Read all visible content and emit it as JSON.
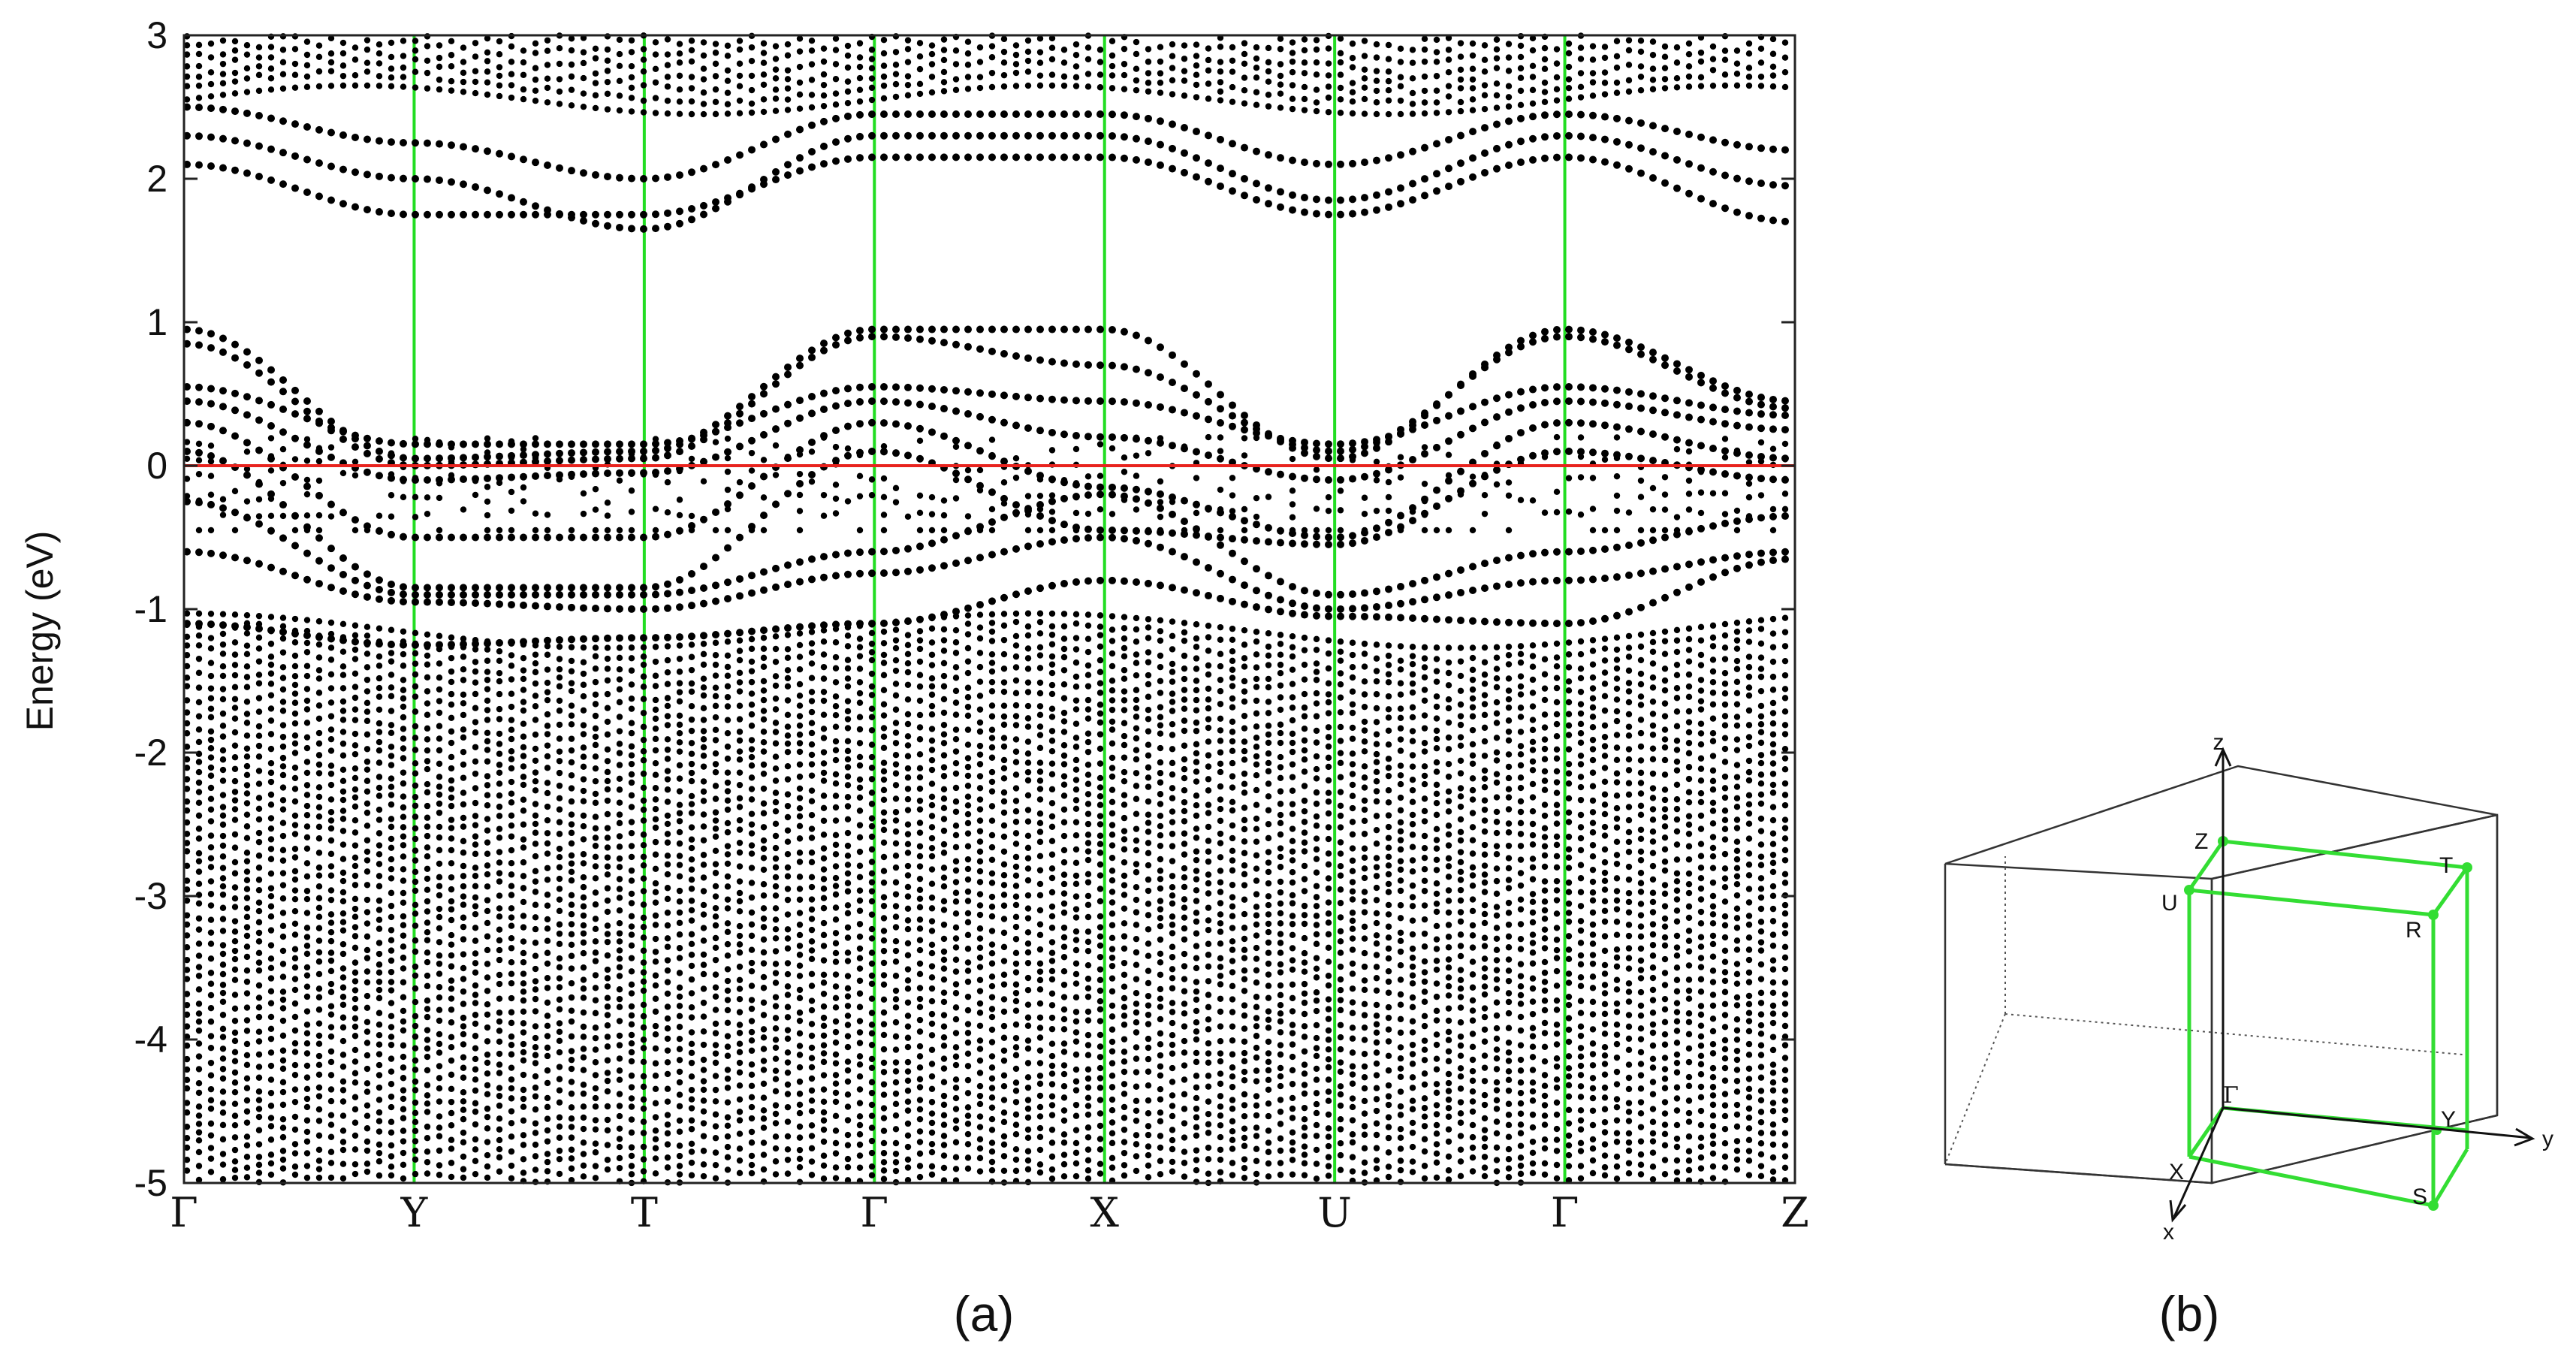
{
  "panel_a_caption": "(a)",
  "panel_b_caption": "(b)",
  "chart_data": [
    {
      "type": "scatter",
      "description_kind": "band structure",
      "title": "",
      "ylabel": "Energy (eV)",
      "xlabel": "",
      "ylim": [
        -5,
        3
      ],
      "yticks": [
        3,
        2,
        1,
        0,
        -1,
        -2,
        -3,
        -4,
        -5
      ],
      "ytick_labels": [
        "3",
        "2",
        "1",
        "0",
        "-1",
        "-2",
        "-3",
        "-4",
        "-5"
      ],
      "kpath_labels": [
        "Γ",
        "Y",
        "T",
        "Γ",
        "X",
        "U",
        "Γ",
        "Z"
      ],
      "fermi_level": 0,
      "fermi_line_color": "#e8231e",
      "kpoint_line_color": "#22dd22",
      "marker_color": "#000000",
      "grid": false,
      "band_gap_region": [
        1.0,
        1.65
      ],
      "series": [
        {
          "path": [
            [
              0,
              0.95
            ],
            [
              1,
              0.05
            ],
            [
              2,
              0.1
            ],
            [
              3,
              0.95
            ],
            [
              4,
              0.95
            ],
            [
              5,
              0.05
            ],
            [
              6,
              0.95
            ],
            [
              7,
              0.45
            ]
          ]
        },
        {
          "path": [
            [
              0,
              0.85
            ],
            [
              1,
              0.0
            ],
            [
              2,
              0.05
            ],
            [
              3,
              0.9
            ],
            [
              4,
              0.7
            ],
            [
              5,
              0.1
            ],
            [
              6,
              0.9
            ],
            [
              7,
              0.4
            ]
          ]
        },
        {
          "path": [
            [
              0,
              0.55
            ],
            [
              1,
              0.15
            ],
            [
              2,
              0.15
            ],
            [
              3,
              0.55
            ],
            [
              4,
              0.45
            ],
            [
              5,
              0.15
            ],
            [
              6,
              0.55
            ],
            [
              7,
              0.35
            ]
          ]
        },
        {
          "path": [
            [
              0,
              0.45
            ],
            [
              1,
              -0.1
            ],
            [
              2,
              -0.05
            ],
            [
              3,
              0.45
            ],
            [
              4,
              0.2
            ],
            [
              5,
              -0.1
            ],
            [
              6,
              0.45
            ],
            [
              7,
              0.25
            ]
          ]
        },
        {
          "path": [
            [
              0,
              0.3
            ],
            [
              1,
              -0.5
            ],
            [
              2,
              -0.5
            ],
            [
              3,
              0.3
            ],
            [
              4,
              -0.15
            ],
            [
              5,
              -0.5
            ],
            [
              6,
              0.3
            ],
            [
              7,
              0.05
            ]
          ]
        },
        {
          "path": [
            [
              0,
              0.1
            ],
            [
              1,
              -0.85
            ],
            [
              2,
              -0.85
            ],
            [
              3,
              0.1
            ],
            [
              4,
              -0.45
            ],
            [
              5,
              -0.55
            ],
            [
              6,
              0.1
            ],
            [
              7,
              -0.1
            ]
          ]
        },
        {
          "path": [
            [
              0,
              -0.25
            ],
            [
              1,
              -0.9
            ],
            [
              2,
              -0.9
            ],
            [
              3,
              -0.6
            ],
            [
              4,
              -0.2
            ],
            [
              5,
              -0.9
            ],
            [
              6,
              -0.6
            ],
            [
              7,
              -0.35
            ]
          ]
        },
        {
          "path": [
            [
              0,
              -0.6
            ],
            [
              1,
              -0.95
            ],
            [
              2,
              -1.0
            ],
            [
              3,
              -0.75
            ],
            [
              4,
              -0.5
            ],
            [
              5,
              -1.0
            ],
            [
              6,
              -0.8
            ],
            [
              7,
              -0.6
            ]
          ]
        },
        {
          "path": [
            [
              0,
              -1.1
            ],
            [
              1,
              -1.25
            ],
            [
              2,
              -1.2
            ],
            [
              3,
              -1.1
            ],
            [
              4,
              -0.8
            ],
            [
              5,
              -1.05
            ],
            [
              6,
              -1.1
            ],
            [
              7,
              -0.65
            ]
          ]
        },
        {
          "path": [
            [
              0,
              2.1
            ],
            [
              1,
              1.75
            ],
            [
              2,
              1.75
            ],
            [
              3,
              2.15
            ],
            [
              4,
              2.15
            ],
            [
              5,
              1.75
            ],
            [
              6,
              2.15
            ],
            [
              7,
              1.7
            ]
          ]
        },
        {
          "path": [
            [
              0,
              2.3
            ],
            [
              1,
              2.0
            ],
            [
              2,
              1.65
            ],
            [
              3,
              2.3
            ],
            [
              4,
              2.3
            ],
            [
              5,
              1.85
            ],
            [
              6,
              2.3
            ],
            [
              7,
              1.95
            ]
          ]
        },
        {
          "path": [
            [
              0,
              2.5
            ],
            [
              1,
              2.25
            ],
            [
              2,
              2.0
            ],
            [
              3,
              2.45
            ],
            [
              4,
              2.45
            ],
            [
              5,
              2.1
            ],
            [
              6,
              2.45
            ],
            [
              7,
              2.2
            ]
          ]
        }
      ]
    },
    {
      "type": "diagram",
      "description_kind": "Brillouin zone",
      "axis_labels": [
        "z",
        "y",
        "x"
      ],
      "point_labels": [
        "Z",
        "T",
        "U",
        "R",
        "Γ",
        "Y",
        "X",
        "S"
      ],
      "box_color": "#33dd33"
    }
  ]
}
